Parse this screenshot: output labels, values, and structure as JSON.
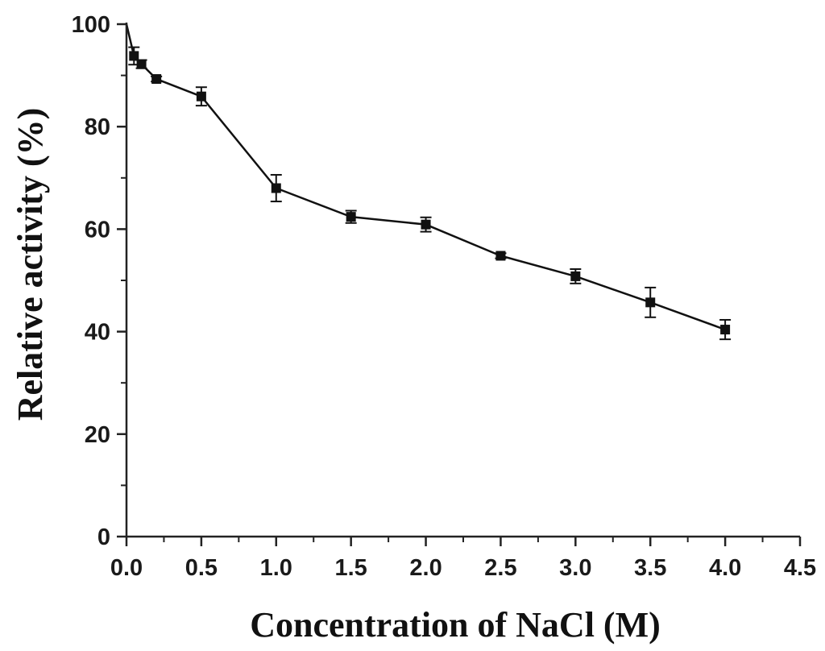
{
  "chart_data": {
    "type": "line",
    "title": "",
    "xlabel": "Concentration of NaCl (M)",
    "ylabel": "Relative activity (%)",
    "xlim": [
      0,
      4.5
    ],
    "ylim": [
      0,
      100
    ],
    "x_ticks": [
      0.0,
      0.5,
      1.0,
      1.5,
      2.0,
      2.5,
      3.0,
      3.5,
      4.0,
      4.5
    ],
    "x_tick_labels": [
      "0.0",
      "0.5",
      "1.0",
      "1.5",
      "2.0",
      "2.5",
      "3.0",
      "3.5",
      "4.0",
      "4.5"
    ],
    "y_ticks": [
      0,
      20,
      40,
      60,
      80,
      100
    ],
    "y_tick_labels": [
      "0",
      "20",
      "40",
      "60",
      "80",
      "100"
    ],
    "x_minor_step": 0.25,
    "y_minor_step": 10,
    "grid": false,
    "series": [
      {
        "name": "Relative activity",
        "marker": "square",
        "color": "#111111",
        "x": [
          0,
          0.05,
          0.1,
          0.2,
          0.5,
          1.0,
          1.5,
          2.0,
          2.5,
          3.0,
          3.5,
          4.0
        ],
        "y": [
          100,
          93.8,
          92.2,
          89.3,
          85.9,
          68.0,
          62.4,
          60.9,
          54.8,
          50.8,
          45.7,
          40.4
        ],
        "error": [
          0,
          1.7,
          0.8,
          0.5,
          1.8,
          2.6,
          1.2,
          1.4,
          0.5,
          1.4,
          2.9,
          1.9
        ]
      }
    ]
  }
}
